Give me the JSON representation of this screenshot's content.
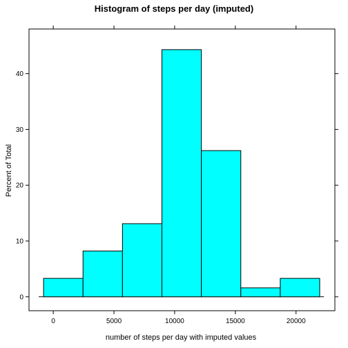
{
  "chart_data": {
    "type": "bar",
    "title": "Histogram of steps per day (imputed)",
    "xlabel": "number of steps per day with imputed values",
    "ylabel": "Percent of Total",
    "xlim": [
      -2000,
      23200
    ],
    "ylim": [
      -2.5,
      48
    ],
    "x_ticks": [
      0,
      5000,
      10000,
      15000,
      20000
    ],
    "y_ticks": [
      0,
      10,
      20,
      30,
      40
    ],
    "bins": [
      {
        "start": -800,
        "end": 2450,
        "value": 3.3
      },
      {
        "start": 2450,
        "end": 5700,
        "value": 8.2
      },
      {
        "start": 5700,
        "end": 8950,
        "value": 13.1
      },
      {
        "start": 8950,
        "end": 12200,
        "value": 44.3
      },
      {
        "start": 12200,
        "end": 15450,
        "value": 26.2
      },
      {
        "start": 15450,
        "end": 18700,
        "value": 1.6
      },
      {
        "start": 18700,
        "end": 21950,
        "value": 3.3
      }
    ],
    "bar_color": "#00FFFF",
    "baseline": [
      -1200,
      22300
    ],
    "grid": false,
    "legend": "none"
  }
}
